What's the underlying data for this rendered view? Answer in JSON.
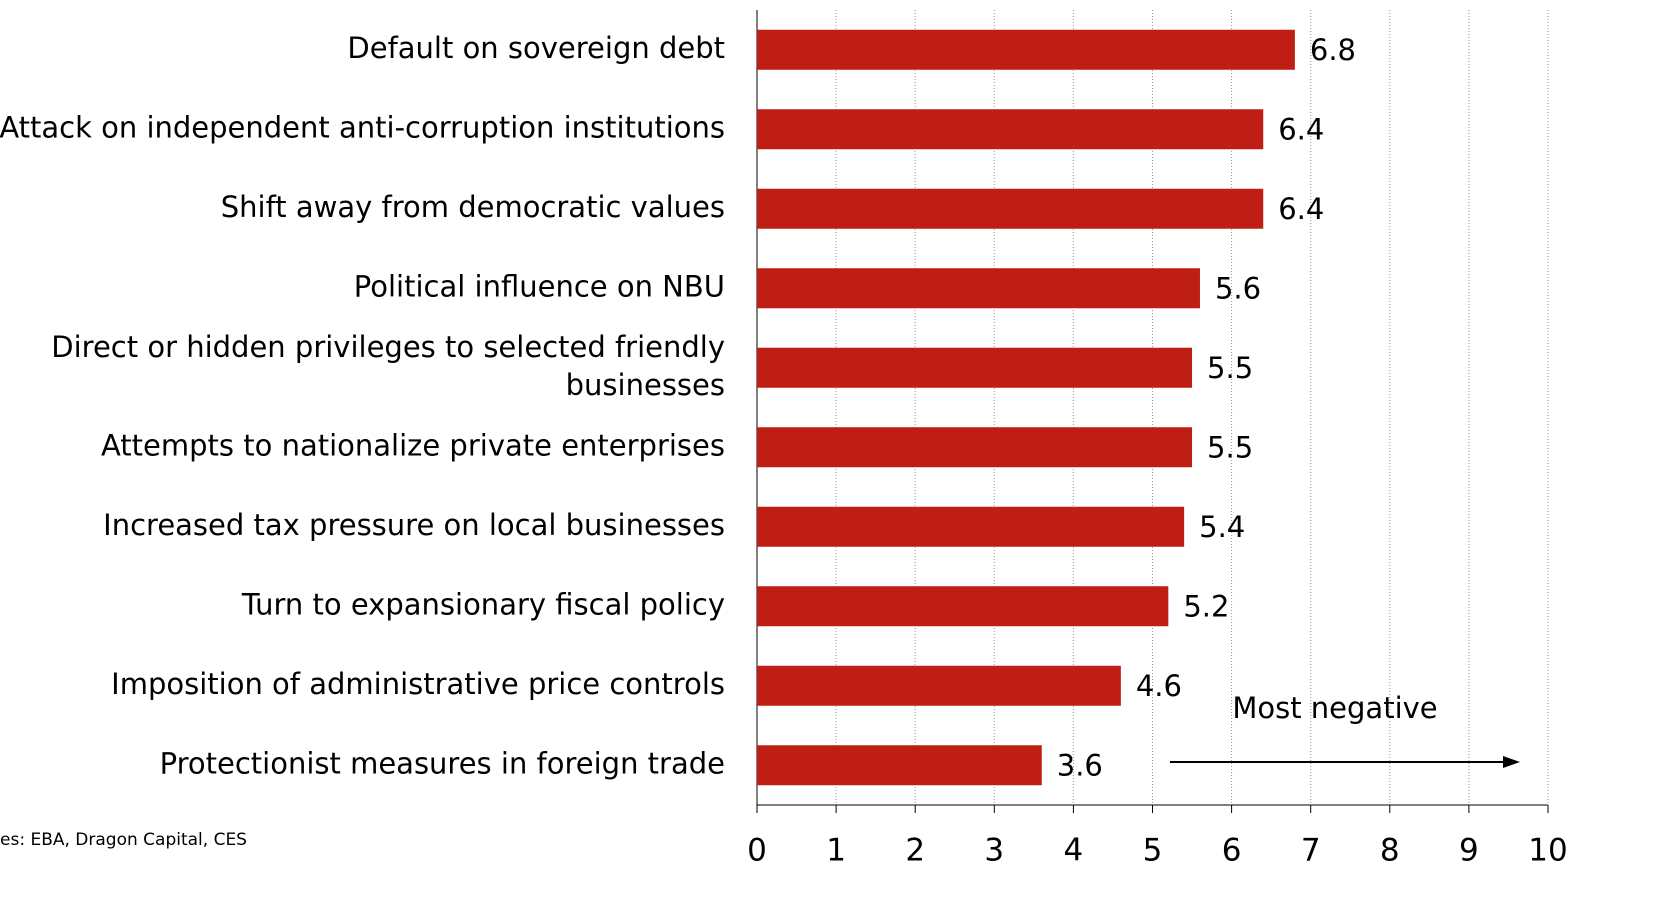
{
  "chart_data": {
    "type": "bar",
    "orientation": "horizontal",
    "categories": [
      "Default on sovereign debt",
      "Attack on independent anti-corruption institutions",
      "Shift away from democratic values",
      "Political influence on NBU",
      "Direct or hidden privileges to selected friendly businesses",
      "Attempts to nationalize private enterprises",
      "Increased tax pressure on local businesses",
      "Turn to expansionary fiscal policy",
      "Imposition of administrative price controls",
      "Protectionist measures in foreign trade"
    ],
    "values": [
      6.8,
      6.4,
      6.4,
      5.6,
      5.5,
      5.5,
      5.4,
      5.2,
      4.6,
      3.6
    ],
    "color": "#be1e14",
    "xlim": [
      0,
      10
    ],
    "xticks": [
      0,
      1,
      2,
      3,
      4,
      5,
      6,
      7,
      8,
      9,
      10
    ],
    "grid": true,
    "annotation": "Most negative",
    "source": "es: EBA, Dragon Capital, CES"
  }
}
